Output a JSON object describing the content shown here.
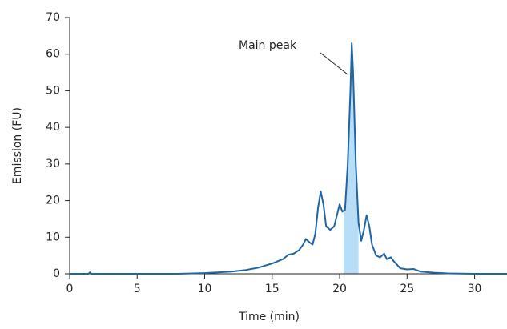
{
  "chart_data": {
    "type": "line",
    "x_label": "Time (min)",
    "y_label": "Emission (FU)",
    "annotation": "Main peak",
    "x": [
      0,
      1.4,
      1.5,
      1.6,
      5,
      8,
      10,
      12,
      13,
      14,
      15,
      15.8,
      16.2,
      16.6,
      17,
      17.3,
      17.5,
      17.8,
      18,
      18.2,
      18.4,
      18.6,
      18.8,
      19,
      19.3,
      19.6,
      19.8,
      20,
      20.2,
      20.4,
      20.6,
      20.8,
      20.9,
      21.0,
      21.2,
      21.4,
      21.6,
      21.8,
      22,
      22.2,
      22.4,
      22.7,
      23,
      23.3,
      23.5,
      23.8,
      24,
      24.5,
      25,
      25.5,
      26,
      27,
      28,
      30,
      32.4
    ],
    "values": [
      0,
      0,
      0.4,
      0,
      0,
      0,
      0.2,
      0.6,
      1,
      1.7,
      2.8,
      4,
      5.2,
      5.5,
      6.5,
      8,
      9.5,
      8.5,
      8,
      11,
      18,
      22.5,
      19,
      13,
      12,
      13,
      16,
      19,
      17,
      17.5,
      30,
      50,
      63,
      55,
      30,
      14,
      9,
      12,
      16,
      13,
      8,
      5,
      4.5,
      5.5,
      4,
      4.5,
      3.5,
      1.5,
      1.2,
      1.3,
      0.6,
      0.3,
      0.1,
      0,
      0
    ],
    "color": "#1f64a6",
    "highlight": [
      20.3,
      21.4
    ],
    "highlight_color": "#b7def6",
    "xlim": [
      0,
      32.4
    ],
    "xticks": [
      0,
      5,
      10,
      15,
      20,
      25,
      30
    ],
    "ylim": [
      0,
      70
    ],
    "yticks": [
      0,
      10,
      20,
      30,
      40,
      50,
      60,
      70
    ]
  }
}
